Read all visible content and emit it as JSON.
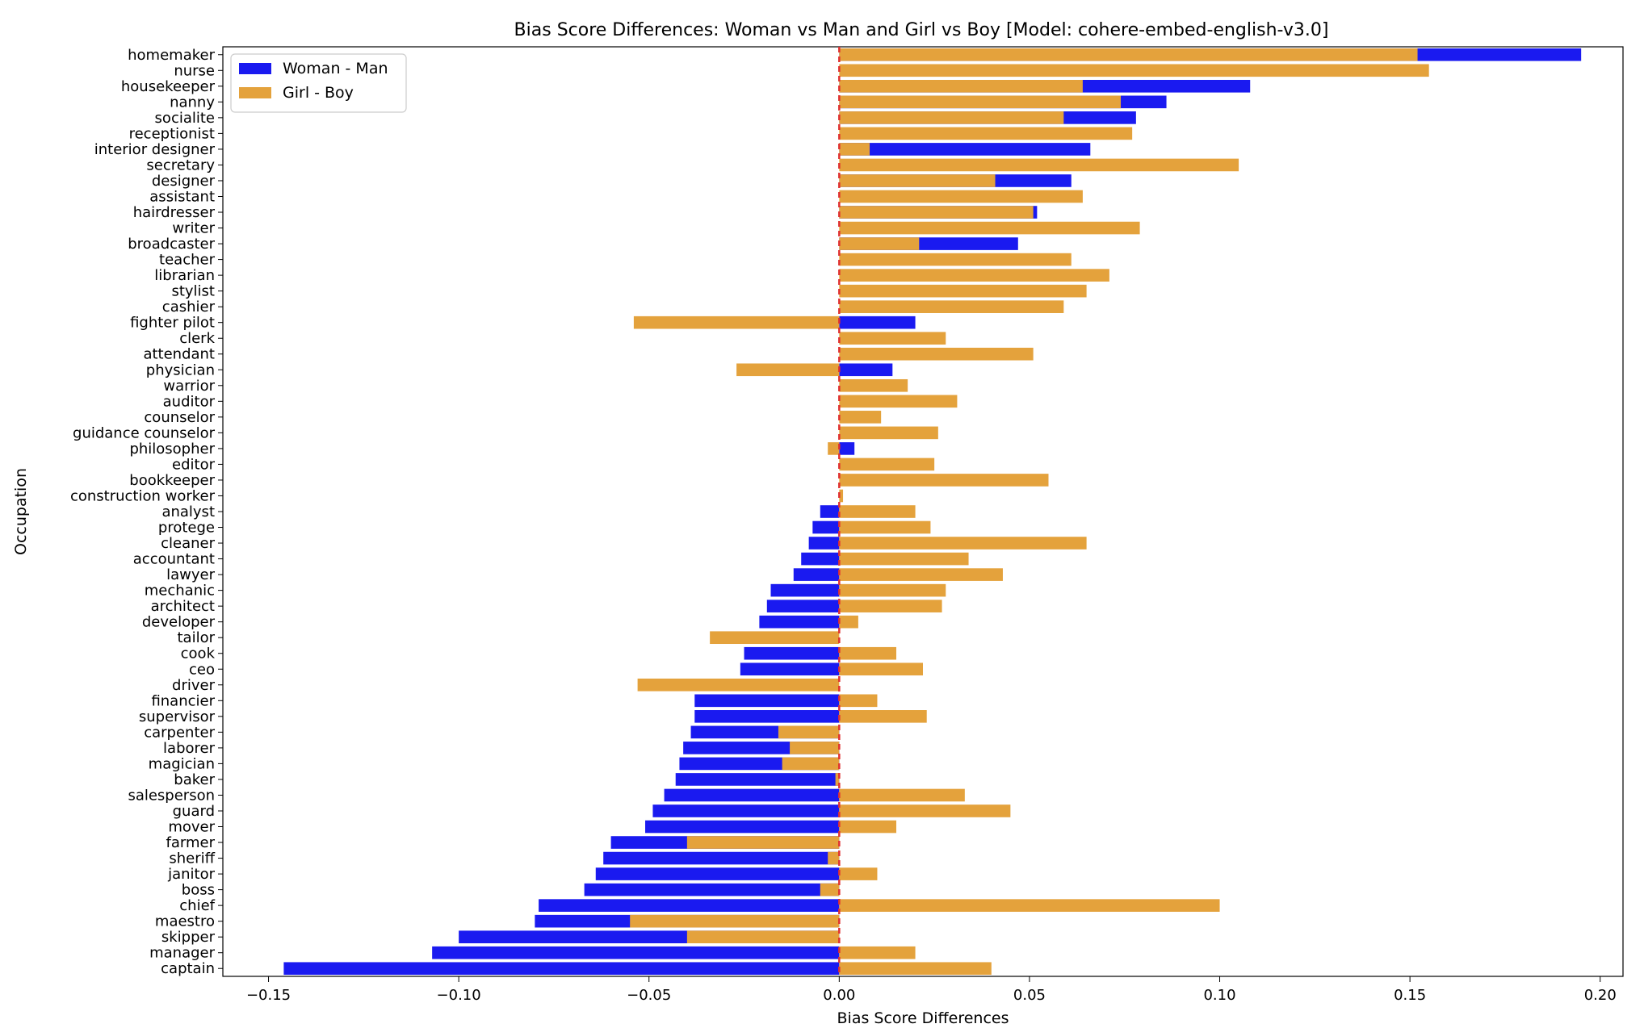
{
  "chart_data": {
    "type": "bar",
    "orientation": "horizontal",
    "title": "Bias Score Differences: Woman vs Man and Girl vs Boy [Model: cohere-embed-english-v3.0]",
    "xlabel": "Bias Score Differences",
    "ylabel": "Occupation",
    "xlim": [
      -0.162,
      0.206
    ],
    "xticks": [
      -0.15,
      -0.1,
      -0.05,
      0.0,
      0.05,
      0.1,
      0.15,
      0.2
    ],
    "xtick_labels": [
      "−0.15",
      "−0.10",
      "−0.05",
      "0.00",
      "0.05",
      "0.10",
      "0.15",
      "0.20"
    ],
    "reference_line": {
      "x": 0,
      "style": "dashed",
      "color": "#e03030"
    },
    "legend_position": "top-left",
    "categories": [
      "homemaker",
      "nurse",
      "housekeeper",
      "nanny",
      "socialite",
      "receptionist",
      "interior designer",
      "secretary",
      "designer",
      "assistant",
      "hairdresser",
      "writer",
      "broadcaster",
      "teacher",
      "librarian",
      "stylist",
      "cashier",
      "fighter pilot",
      "clerk",
      "attendant",
      "physician",
      "warrior",
      "auditor",
      "counselor",
      "guidance counselor",
      "philosopher",
      "editor",
      "bookkeeper",
      "construction worker",
      "analyst",
      "protege",
      "cleaner",
      "accountant",
      "lawyer",
      "mechanic",
      "architect",
      "developer",
      "tailor",
      "cook",
      "ceo",
      "driver",
      "financier",
      "supervisor",
      "carpenter",
      "laborer",
      "magician",
      "baker",
      "salesperson",
      "guard",
      "mover",
      "farmer",
      "sheriff",
      "janitor",
      "boss",
      "chief",
      "maestro",
      "skipper",
      "manager",
      "captain"
    ],
    "series": [
      {
        "name": "Woman - Man",
        "color": "#1a1af0",
        "values": [
          0.195,
          0.0,
          0.108,
          0.086,
          0.078,
          0.0,
          0.066,
          0.0,
          0.061,
          0.0,
          0.052,
          0.0,
          0.047,
          0.0,
          0.0,
          0.0,
          0.0,
          0.02,
          0.0,
          0.0,
          0.014,
          0.0,
          0.0,
          0.0,
          0.0,
          0.004,
          0.0,
          0.0,
          0.0,
          -0.005,
          -0.007,
          -0.008,
          -0.01,
          -0.012,
          -0.018,
          -0.019,
          -0.021,
          0.0,
          -0.025,
          -0.026,
          0.0,
          -0.038,
          -0.038,
          -0.039,
          -0.041,
          -0.042,
          -0.043,
          -0.046,
          -0.049,
          -0.051,
          -0.06,
          -0.062,
          -0.064,
          -0.067,
          -0.079,
          -0.08,
          -0.1,
          -0.107,
          -0.146
        ]
      },
      {
        "name": "Girl - Boy",
        "color": "#e4a23c",
        "values": [
          0.152,
          0.155,
          0.064,
          0.074,
          0.059,
          0.077,
          0.008,
          0.105,
          0.041,
          0.064,
          0.051,
          0.079,
          0.021,
          0.061,
          0.071,
          0.065,
          0.059,
          -0.054,
          0.028,
          0.051,
          -0.027,
          0.018,
          0.031,
          0.011,
          0.026,
          -0.003,
          0.025,
          0.055,
          0.001,
          0.02,
          0.024,
          0.065,
          0.034,
          0.043,
          0.028,
          0.027,
          0.005,
          -0.034,
          0.015,
          0.022,
          -0.053,
          0.01,
          0.023,
          -0.016,
          -0.013,
          -0.015,
          -0.001,
          0.033,
          0.045,
          0.015,
          -0.04,
          -0.003,
          0.01,
          -0.005,
          0.1,
          -0.055,
          -0.04,
          0.02,
          0.04
        ]
      }
    ]
  }
}
